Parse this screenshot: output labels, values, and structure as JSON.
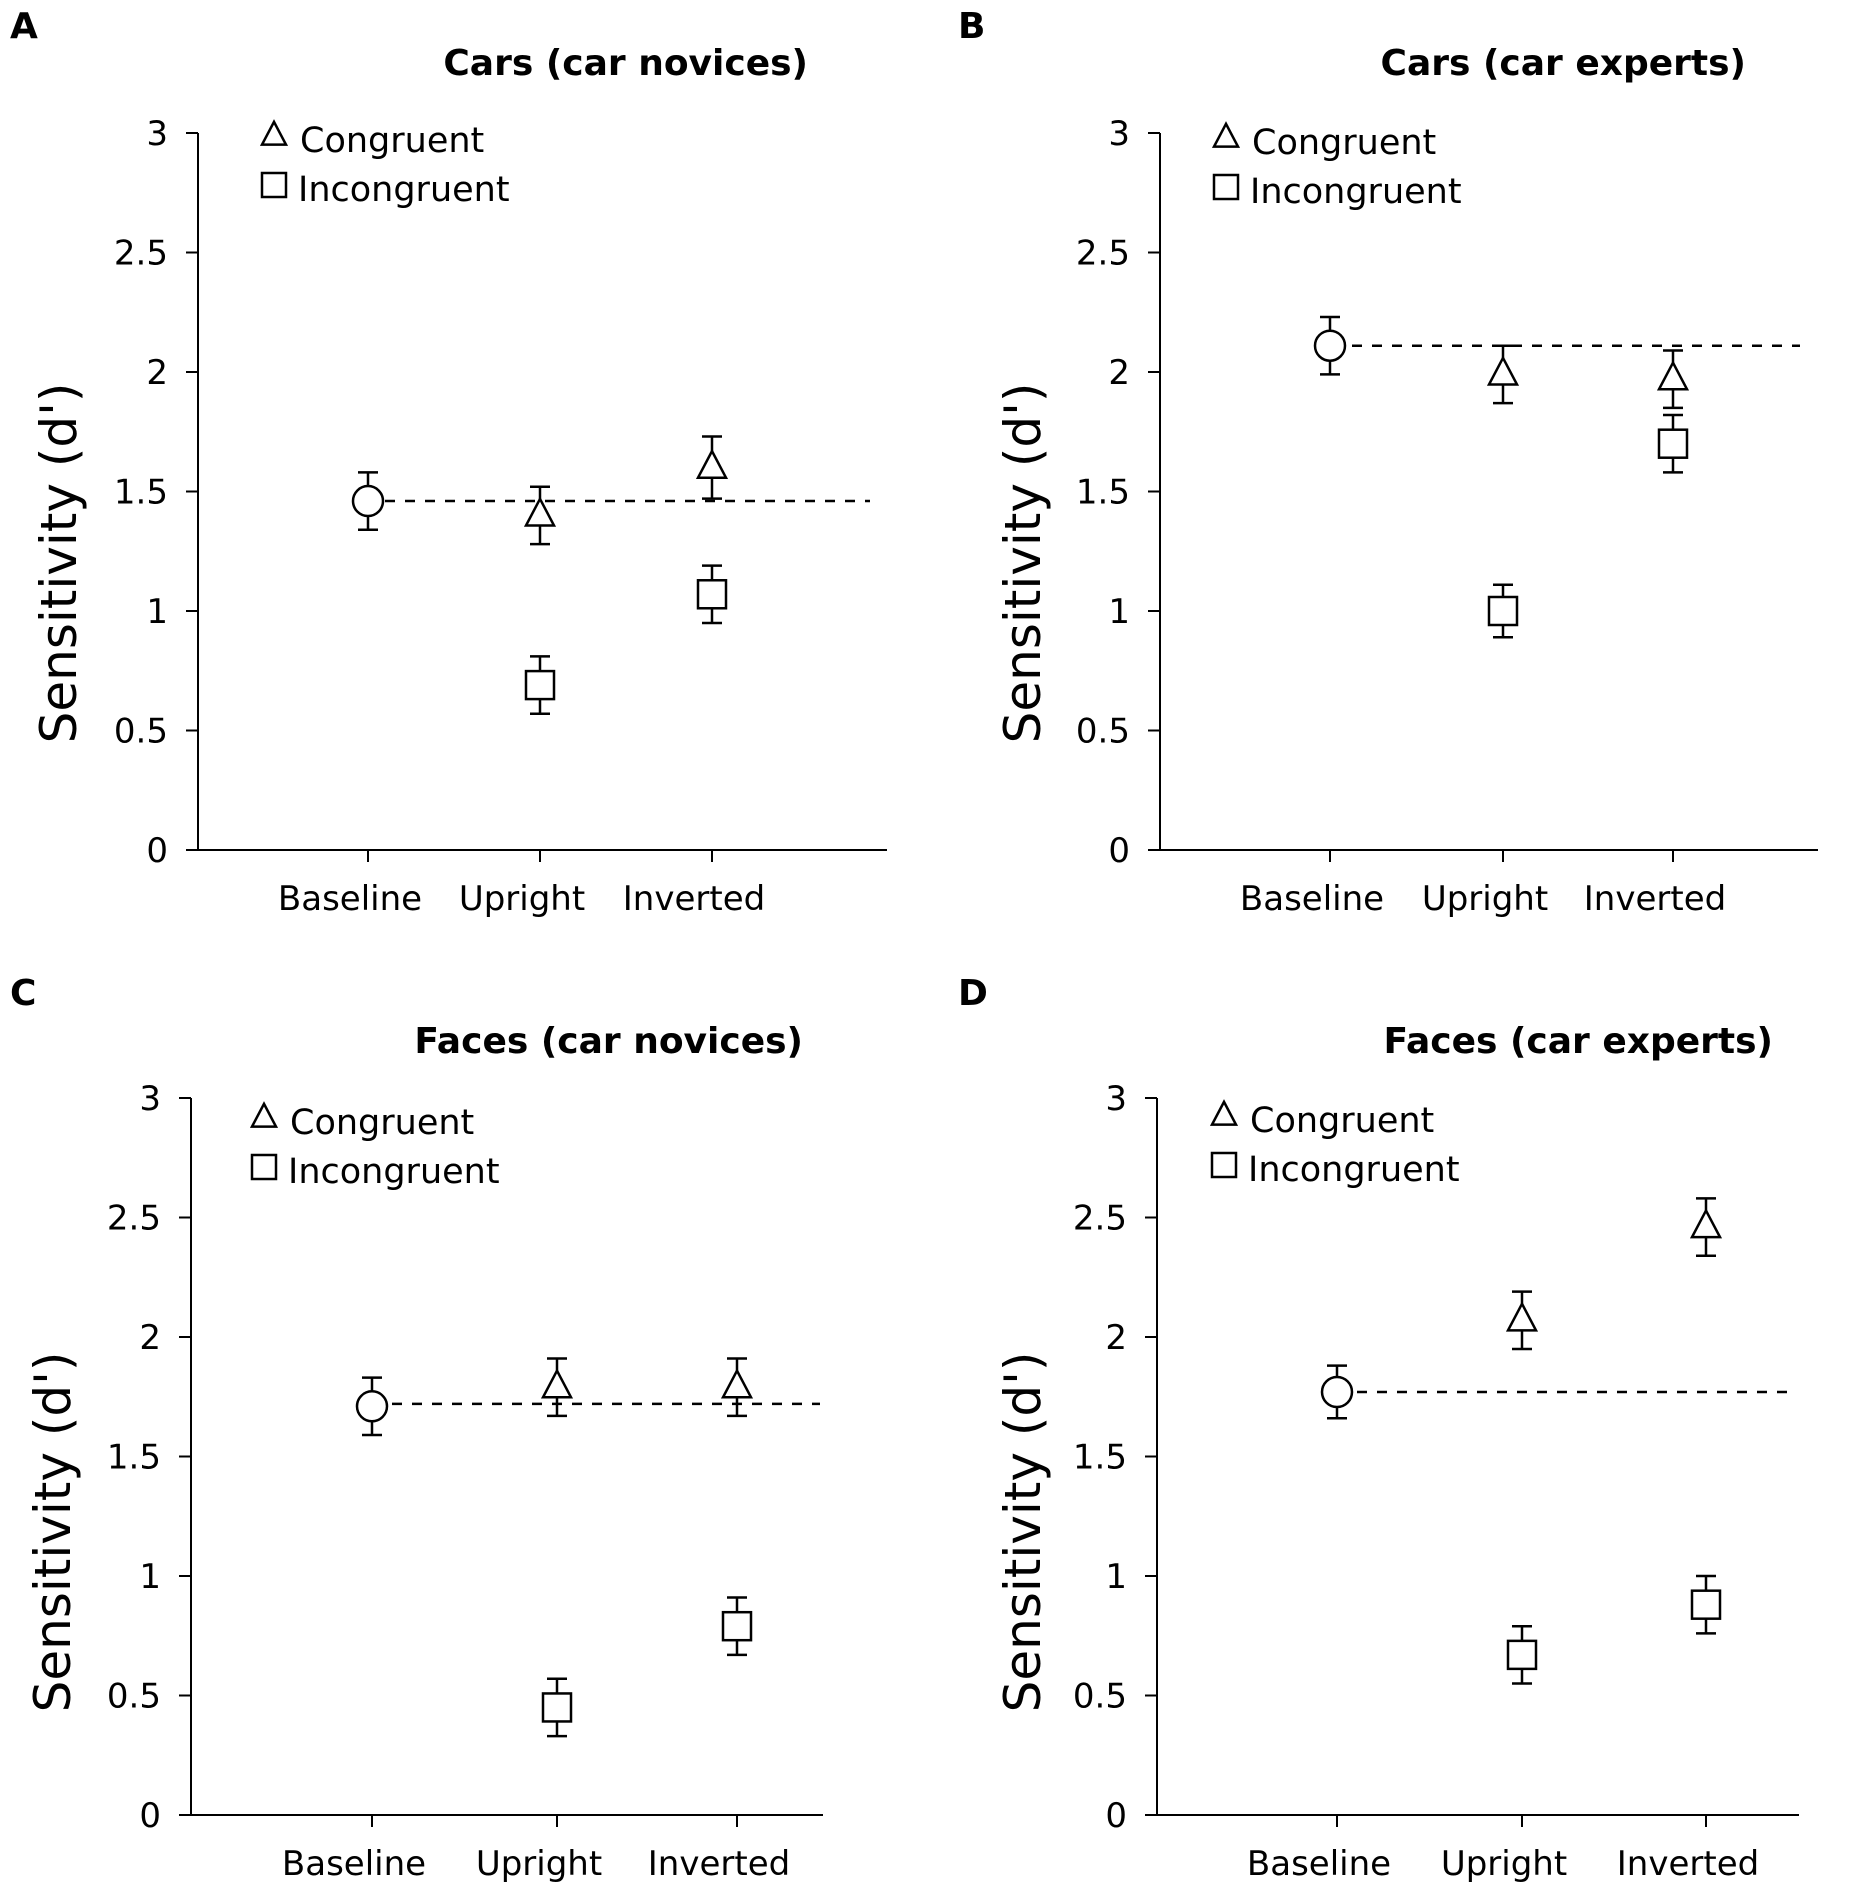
{
  "colors": {
    "background": "#ffffff",
    "ink": "#000000"
  },
  "chart_data": [
    {
      "type": "scatter",
      "panel_letter": "A",
      "title": "Cars (car novices)",
      "xlabel": "",
      "ylabel": "Sensitivity (d')",
      "ylim": [
        0,
        3
      ],
      "yticks": [
        "0",
        "0.5",
        "1",
        "1.5",
        "2",
        "2.5",
        "3"
      ],
      "categories": [
        "Baseline",
        "Upright",
        "Inverted"
      ],
      "legend": [
        {
          "label": "Congruent",
          "marker": "triangle"
        },
        {
          "label": "Incongruent",
          "marker": "square"
        }
      ],
      "baseline": {
        "category": "Baseline",
        "value": 1.46,
        "error": 0.12,
        "marker": "circle",
        "reference_line": 1.46
      },
      "series": [
        {
          "name": "Congruent",
          "marker": "triangle",
          "categories": [
            "Upright",
            "Inverted"
          ],
          "values": [
            1.4,
            1.6
          ],
          "errors": [
            0.12,
            0.13
          ]
        },
        {
          "name": "Incongruent",
          "marker": "square",
          "categories": [
            "Upright",
            "Inverted"
          ],
          "values": [
            0.69,
            1.07
          ],
          "errors": [
            0.12,
            0.12
          ]
        }
      ]
    },
    {
      "type": "scatter",
      "panel_letter": "B",
      "title": "Cars (car experts)",
      "xlabel": "",
      "ylabel": "Sensitivity (d')",
      "ylim": [
        0,
        3
      ],
      "yticks": [
        "0",
        "0.5",
        "1",
        "1.5",
        "2",
        "2.5",
        "3"
      ],
      "categories": [
        "Baseline",
        "Upright",
        "Inverted"
      ],
      "legend": [
        {
          "label": "Congruent",
          "marker": "triangle"
        },
        {
          "label": "Incongruent",
          "marker": "square"
        }
      ],
      "baseline": {
        "category": "Baseline",
        "value": 2.11,
        "error": 0.12,
        "marker": "circle",
        "reference_line": 2.11
      },
      "series": [
        {
          "name": "Congruent",
          "marker": "triangle",
          "categories": [
            "Upright",
            "Inverted"
          ],
          "values": [
            1.99,
            1.97
          ],
          "errors": [
            0.12,
            0.12
          ]
        },
        {
          "name": "Incongruent",
          "marker": "square",
          "categories": [
            "Upright",
            "Inverted"
          ],
          "values": [
            1.0,
            1.7
          ],
          "errors": [
            0.11,
            0.12
          ]
        }
      ]
    },
    {
      "type": "scatter",
      "panel_letter": "C",
      "title": "Faces (car novices)",
      "xlabel": "",
      "ylabel": "Sensitivity (d')",
      "ylim": [
        0,
        3
      ],
      "yticks": [
        "0",
        "0.5",
        "1",
        "1.5",
        "2",
        "2.5",
        "3"
      ],
      "categories": [
        "Baseline",
        "Upright",
        "Inverted"
      ],
      "legend": [
        {
          "label": "Congruent",
          "marker": "triangle"
        },
        {
          "label": "Incongruent",
          "marker": "square"
        }
      ],
      "baseline": {
        "category": "Baseline",
        "value": 1.71,
        "error": 0.12,
        "marker": "circle",
        "reference_line": 1.72
      },
      "series": [
        {
          "name": "Congruent",
          "marker": "triangle",
          "categories": [
            "Upright",
            "Inverted"
          ],
          "values": [
            1.79,
            1.79
          ],
          "errors": [
            0.12,
            0.12
          ]
        },
        {
          "name": "Incongruent",
          "marker": "square",
          "categories": [
            "Upright",
            "Inverted"
          ],
          "values": [
            0.45,
            0.79
          ],
          "errors": [
            0.12,
            0.12
          ]
        }
      ]
    },
    {
      "type": "scatter",
      "panel_letter": "D",
      "title": "Faces (car experts)",
      "xlabel": "",
      "ylabel": "Sensitivity (d')",
      "ylim": [
        0,
        3
      ],
      "yticks": [
        "0",
        "0.5",
        "1",
        "1.5",
        "2",
        "2.5",
        "3"
      ],
      "categories": [
        "Baseline",
        "Upright",
        "Inverted"
      ],
      "legend": [
        {
          "label": "Congruent",
          "marker": "triangle"
        },
        {
          "label": "Incongruent",
          "marker": "square"
        }
      ],
      "baseline": {
        "category": "Baseline",
        "value": 1.77,
        "error": 0.11,
        "marker": "circle",
        "reference_line": 1.77
      },
      "series": [
        {
          "name": "Congruent",
          "marker": "triangle",
          "categories": [
            "Upright",
            "Inverted"
          ],
          "values": [
            2.07,
            2.46
          ],
          "errors": [
            0.12,
            0.12
          ]
        },
        {
          "name": "Incongruent",
          "marker": "square",
          "categories": [
            "Upright",
            "Inverted"
          ],
          "values": [
            0.67,
            0.88
          ],
          "errors": [
            0.12,
            0.12
          ]
        }
      ]
    }
  ]
}
